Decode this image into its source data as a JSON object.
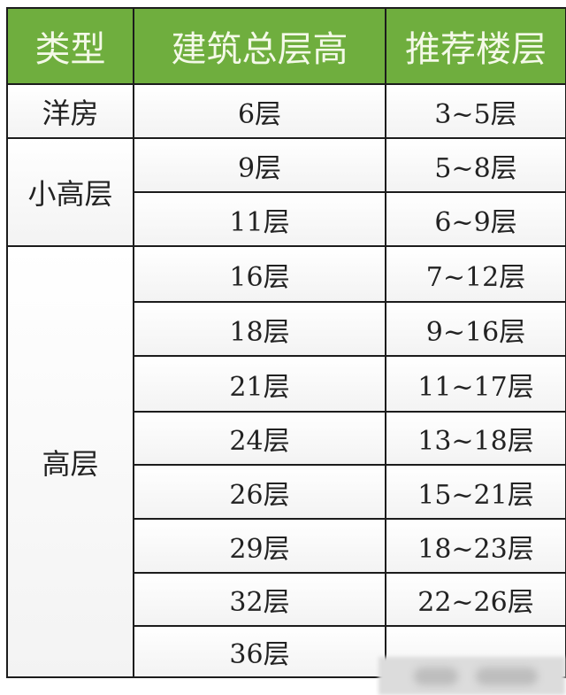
{
  "headers": [
    "类型",
    "建筑总层高",
    "推荐楼层"
  ],
  "groups": [
    {
      "type": "洋房",
      "rows": [
        {
          "total": "6层",
          "recommended": "3~5层"
        }
      ]
    },
    {
      "type": "小高层",
      "rows": [
        {
          "total": "9层",
          "recommended": "5~8层"
        },
        {
          "total": "11层",
          "recommended": "6~9层"
        }
      ]
    },
    {
      "type": "高层",
      "rows": [
        {
          "total": "16层",
          "recommended": "7~12层"
        },
        {
          "total": "18层",
          "recommended": "9~16层"
        },
        {
          "total": "21层",
          "recommended": "11~17层"
        },
        {
          "total": "24层",
          "recommended": "13~18层"
        },
        {
          "total": "26层",
          "recommended": "15~21层"
        },
        {
          "total": "29层",
          "recommended": "18~23层"
        },
        {
          "total": "32层",
          "recommended": "22~26层"
        },
        {
          "total": "36层",
          "recommended": ""
        }
      ]
    }
  ],
  "colors": {
    "header_bg": "#6fae3e",
    "header_text": "#f4f9e8"
  }
}
